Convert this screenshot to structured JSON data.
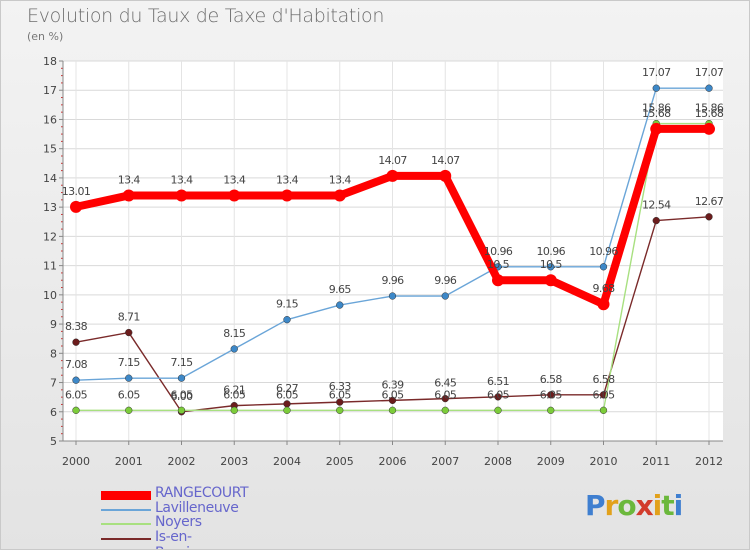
{
  "title": "Evolution du Taux de Taxe d'Habitation",
  "subtitle": "(en %)",
  "logo": {
    "letters": [
      "P",
      "r",
      "o",
      "x",
      "i",
      "t",
      "i"
    ],
    "colors": [
      "#3f7fd0",
      "#e2a11b",
      "#6bb83c",
      "#d23c2c",
      "#e2a11b",
      "#6bb83c",
      "#3f7fd0"
    ]
  },
  "chart_data": {
    "type": "line",
    "x": [
      "2000",
      "2001",
      "2002",
      "2003",
      "2004",
      "2005",
      "2006",
      "2007",
      "2008",
      "2009",
      "2010",
      "2011",
      "2012"
    ],
    "ylim": [
      5,
      18
    ],
    "yticks": [
      "5",
      "6",
      "7",
      "8",
      "9",
      "10",
      "11",
      "12",
      "13",
      "14",
      "15",
      "16",
      "17",
      "18"
    ],
    "grid": true,
    "legend_position": "bottom-left",
    "series": [
      {
        "name": "RANGECOURT",
        "color": "#ff0000",
        "values": [
          13.01,
          13.4,
          13.4,
          13.4,
          13.4,
          13.4,
          14.07,
          14.07,
          10.5,
          10.5,
          9.68,
          15.68,
          15.68
        ],
        "labels": [
          "13.01",
          "13.4",
          "13.4",
          "13.4",
          "13.4",
          "13.4",
          "14.07",
          "14.07",
          "10.5",
          "10.5",
          "9.68",
          "15.68",
          "15.68"
        ]
      },
      {
        "name": "Lavilleneuve",
        "color": "#6aa5d8",
        "marker": "#3d88c8",
        "values": [
          7.08,
          7.15,
          7.15,
          8.15,
          9.15,
          9.65,
          9.96,
          9.96,
          10.96,
          10.96,
          10.96,
          17.07,
          17.07
        ],
        "labels": [
          "7.08",
          "7.15",
          "7.15",
          "8.15",
          "9.15",
          "9.65",
          "9.96",
          "9.96",
          "10.96",
          "10.96",
          "10.96",
          "17.07",
          "17.07"
        ]
      },
      {
        "name": "Noyers",
        "color": "#a8e080",
        "marker": "#7ccc3a",
        "values": [
          6.05,
          6.05,
          6.05,
          6.05,
          6.05,
          6.05,
          6.05,
          6.05,
          6.05,
          6.05,
          6.05,
          15.86,
          15.86
        ],
        "labels": [
          "6.05",
          "6.05",
          "6.05",
          "6.05",
          "6.05",
          "6.05",
          "6.05",
          "6.05",
          "6.05",
          "6.05",
          "6.05",
          "15.86",
          "15.86"
        ]
      },
      {
        "name": "Is-en-Bassigny",
        "color": "#7a2a2a",
        "marker": "#6b1c1c",
        "values": [
          8.38,
          8.71,
          6.0,
          6.21,
          6.27,
          6.33,
          6.39,
          6.45,
          6.51,
          6.58,
          6.58,
          12.54,
          12.67
        ],
        "labels": [
          "8.38",
          "8.71",
          "6.00",
          "6.21",
          "6.27",
          "6.33",
          "6.39",
          "6.45",
          "6.51",
          "6.58",
          "6.58",
          "12.54",
          "12.67"
        ]
      }
    ]
  }
}
